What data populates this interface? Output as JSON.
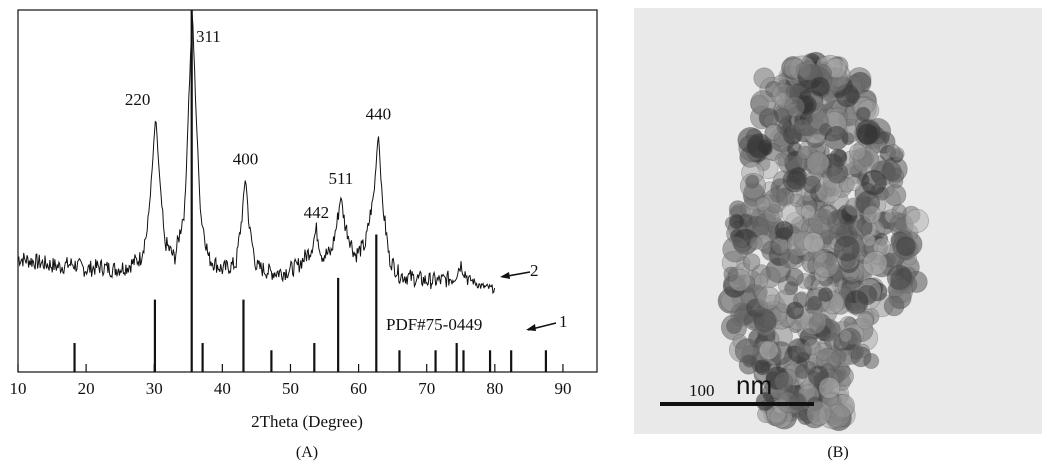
{
  "panel_a": {
    "label": "(A)"
  },
  "panel_b": {
    "label": "(B)",
    "scale_bar": {
      "value": "100",
      "unit": "nm"
    }
  },
  "chart_data": {
    "type": "line",
    "title": "",
    "xlabel": "2Theta (Degree)",
    "ylabel": "",
    "xlim": [
      10,
      95
    ],
    "xticks": [
      10,
      20,
      30,
      40,
      50,
      60,
      70,
      80,
      90
    ],
    "peaks": [
      {
        "label": "220",
        "x": 30.2
      },
      {
        "label": "311",
        "x": 35.6
      },
      {
        "label": "400",
        "x": 43.4
      },
      {
        "label": "442",
        "x": 53.8
      },
      {
        "label": "511",
        "x": 57.4
      },
      {
        "label": "440",
        "x": 62.9
      }
    ],
    "series": [
      {
        "name": "2",
        "x": [
          10,
          12,
          14,
          16,
          18,
          20,
          22,
          24,
          26,
          28,
          29,
          29.6,
          30.2,
          30.8,
          31.5,
          33,
          34.5,
          35.1,
          35.6,
          36.1,
          36.8,
          38,
          40,
          42,
          42.8,
          43.4,
          44,
          45,
          47,
          49,
          51,
          53,
          53.8,
          54.6,
          56,
          56.8,
          57.4,
          58,
          59.5,
          61,
          62.3,
          62.9,
          63.5,
          64.5,
          66,
          68,
          70,
          72,
          74,
          75,
          76,
          78,
          80
        ],
        "y": [
          0.12,
          0.11,
          0.1,
          0.09,
          0.1,
          0.08,
          0.09,
          0.08,
          0.09,
          0.12,
          0.22,
          0.4,
          0.62,
          0.4,
          0.18,
          0.12,
          0.3,
          0.7,
          1.0,
          0.66,
          0.28,
          0.12,
          0.08,
          0.1,
          0.25,
          0.41,
          0.22,
          0.09,
          0.07,
          0.07,
          0.09,
          0.15,
          0.22,
          0.13,
          0.14,
          0.24,
          0.34,
          0.24,
          0.13,
          0.17,
          0.36,
          0.57,
          0.32,
          0.12,
          0.06,
          0.05,
          0.04,
          0.04,
          0.05,
          0.1,
          0.05,
          0.02,
          0.01
        ]
      },
      {
        "name": "1",
        "legend": "PDF#75-0449",
        "x": [
          18.3,
          30.1,
          35.5,
          37.1,
          43.1,
          47.2,
          53.5,
          57.0,
          62.6,
          66.0,
          71.3,
          74.4,
          75.4,
          79.3,
          82.4,
          87.5
        ],
        "y": [
          0.08,
          0.2,
          1.0,
          0.08,
          0.2,
          0.06,
          0.08,
          0.26,
          0.38,
          0.06,
          0.06,
          0.08,
          0.06,
          0.06,
          0.06,
          0.06
        ]
      }
    ]
  }
}
